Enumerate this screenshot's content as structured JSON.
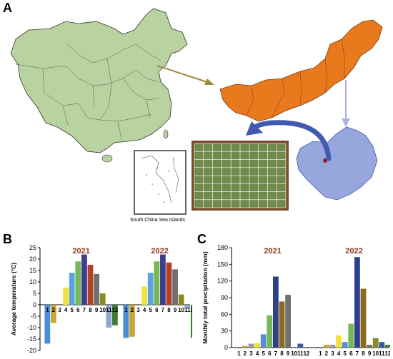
{
  "panels": {
    "a": "A",
    "b": "B",
    "c": "C"
  },
  "map": {
    "inset_caption": "South China Sea Islands",
    "colors": {
      "china": "#b9d3a0",
      "inner_mongolia": "#e8791d",
      "study_area": "#97a6dc",
      "arrow_olive": "#9a8c3a",
      "arrow_blue": "#4259b0",
      "arrow_light": "#a9b3df",
      "plot_border": "#7a4a2a"
    }
  },
  "chart_data": [
    {
      "type": "bar",
      "panel": "B",
      "ylabel": "Average temperature (°C)",
      "ylim": [
        -20,
        25
      ],
      "yticks": [
        -20,
        -15,
        -10,
        -5,
        0,
        5,
        10,
        15,
        20,
        25
      ],
      "categories": [
        "1",
        "2",
        "3",
        "4",
        "5",
        "6",
        "7",
        "8",
        "9",
        "10",
        "11",
        "12"
      ],
      "series": [
        {
          "name": "2021",
          "values": [
            -17,
            -8,
            0,
            7.5,
            14,
            19,
            22,
            17.5,
            13.5,
            5,
            -10,
            -9
          ]
        },
        {
          "name": "2022",
          "values": [
            -14.5,
            -14,
            0,
            8,
            14,
            19,
            22,
            18.5,
            15.5,
            4.5,
            -1.5,
            -14.5
          ]
        }
      ],
      "bar_colors": [
        "#4a8ed6",
        "#c9a63a",
        "#9a9a9a",
        "#f2e23a",
        "#5aa3e0",
        "#74b85a",
        "#3c3f8c",
        "#b5402a",
        "#707070",
        "#8e8a22",
        "#8fa6c8",
        "#3f7c30"
      ]
    },
    {
      "type": "bar",
      "panel": "C",
      "ylabel": "Monthly total precipitation (mm)",
      "ylim": [
        0,
        180
      ],
      "yticks": [
        0,
        30,
        60,
        90,
        120,
        150,
        180
      ],
      "categories": [
        "1",
        "2",
        "3",
        "4",
        "5",
        "6",
        "7",
        "8",
        "9",
        "10",
        "11",
        "12"
      ],
      "series": [
        {
          "name": "2021",
          "values": [
            0,
            3,
            7,
            8,
            24,
            58,
            128,
            83,
            95,
            0,
            7,
            0
          ]
        },
        {
          "name": "2022",
          "values": [
            1,
            5,
            5,
            22,
            10,
            43,
            163,
            106,
            5,
            17,
            10,
            5
          ]
        }
      ],
      "bar_colors": [
        "#2a3f86",
        "#c9a63a",
        "#9a9a9a",
        "#f2e23a",
        "#5a8fd6",
        "#74b85a",
        "#2f3f8c",
        "#8c6a1e",
        "#707070",
        "#8e8a22",
        "#3a5a9e",
        "#4f7a3a"
      ]
    }
  ]
}
